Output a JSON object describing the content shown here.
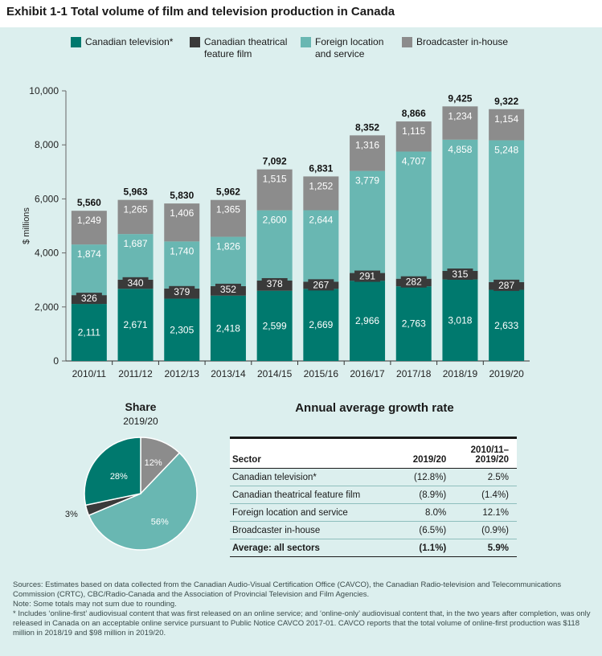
{
  "title": "Exhibit 1-1  Total volume of film and television production in Canada",
  "colors": {
    "tv": "#00796e",
    "film": "#3a3a3a",
    "foreign": "#69b7b2",
    "inhouse": "#8c8c8c"
  },
  "chart_data": [
    {
      "type": "bar",
      "stacked": true,
      "ylabel": "$ millions",
      "ylim": [
        0,
        10000
      ],
      "yticks": [
        "0",
        "2,000",
        "4,000",
        "6,000",
        "8,000",
        "10,000"
      ],
      "categories": [
        "2010/11",
        "2011/12",
        "2012/13",
        "2013/14",
        "2014/15",
        "2015/16",
        "2016/17",
        "2017/18",
        "2018/19",
        "2019/20"
      ],
      "series": [
        {
          "name": "Canadian television*",
          "values": [
            2111,
            2671,
            2305,
            2418,
            2599,
            2669,
            2966,
            2763,
            3018,
            2633
          ],
          "labels": [
            "2,111",
            "2,671",
            "2,305",
            "2,418",
            "2,599",
            "2,669",
            "2,966",
            "2,763",
            "3,018",
            "2,633"
          ]
        },
        {
          "name": "Canadian theatrical feature film",
          "values": [
            326,
            340,
            379,
            352,
            378,
            267,
            291,
            282,
            315,
            287
          ],
          "labels": [
            "326",
            "340",
            "379",
            "352",
            "378",
            "267",
            "291",
            "282",
            "315",
            "287"
          ]
        },
        {
          "name": "Foreign location and service",
          "values": [
            1874,
            1687,
            1740,
            1826,
            2600,
            2644,
            3779,
            4707,
            4858,
            5248
          ],
          "labels": [
            "1,874",
            "1,687",
            "1,740",
            "1,826",
            "2,600",
            "2,644",
            "3,779",
            "4,707",
            "4,858",
            "5,248"
          ]
        },
        {
          "name": "Broadcaster in-house",
          "values": [
            1249,
            1265,
            1406,
            1365,
            1515,
            1252,
            1316,
            1115,
            1234,
            1154
          ],
          "labels": [
            "1,249",
            "1,265",
            "1,406",
            "1,365",
            "1,515",
            "1,252",
            "1,316",
            "1,115",
            "1,234",
            "1,154"
          ]
        }
      ],
      "totals": [
        "5,560",
        "5,963",
        "5,830",
        "5,962",
        "7,092",
        "6,831",
        "8,352",
        "8,866",
        "9,425",
        "9,322"
      ],
      "legend": [
        {
          "line1": "Canadian television*",
          "line2": ""
        },
        {
          "line1": "Canadian theatrical",
          "line2": "feature film"
        },
        {
          "line1": "Foreign location",
          "line2": "and service"
        },
        {
          "line1": "Broadcaster in-house",
          "line2": ""
        }
      ],
      "legend_position": "top"
    },
    {
      "type": "pie",
      "title": "Share",
      "subtitle": "2019/20",
      "slices": [
        {
          "value": 12,
          "label": "12%"
        },
        {
          "value": 56,
          "label": "56%"
        },
        {
          "value": 3,
          "label": "3%"
        },
        {
          "value": 28,
          "label": "28%"
        }
      ]
    }
  ],
  "growth": {
    "title": "Annual average growth rate",
    "headers": {
      "sector": "Sector",
      "col1": "2019/20",
      "col2_line1": "2010/11–",
      "col2_line2": "2019/20"
    },
    "rows": [
      {
        "sector": "Canadian television*",
        "v1": "(12.8%)",
        "v2": "2.5%"
      },
      {
        "sector": "Canadian theatrical feature film",
        "v1": "(8.9%)",
        "v2": "(1.4%)"
      },
      {
        "sector": "Foreign location and service",
        "v1": "8.0%",
        "v2": "12.1%"
      },
      {
        "sector": "Broadcaster in-house",
        "v1": "(6.5%)",
        "v2": "(0.9%)"
      }
    ],
    "average": {
      "sector": "Average: all sectors",
      "v1": "(1.1%)",
      "v2": "5.9%"
    }
  },
  "notes": {
    "sources": "Sources: Estimates based on data collected from the Canadian Audio-Visual Certification Office (CAVCO), the Canadian Radio-television and Telecommunications Commission (CRTC), CBC/Radio-Canada and the Association of Provincial Television and Film Agencies.",
    "note": "Note: Some totals may not sum due to rounding.",
    "footnote": "* Includes ‘online-first’ audiovisual content that was first released on an online service; and ‘online-only’ audiovisual content that, in the two years after completion, was only released in Canada on an acceptable online service pursuant to Public Notice CAVCO 2017-01. CAVCO reports that the total volume of online-first production was $118 million in 2018/19 and $98 million in 2019/20."
  }
}
